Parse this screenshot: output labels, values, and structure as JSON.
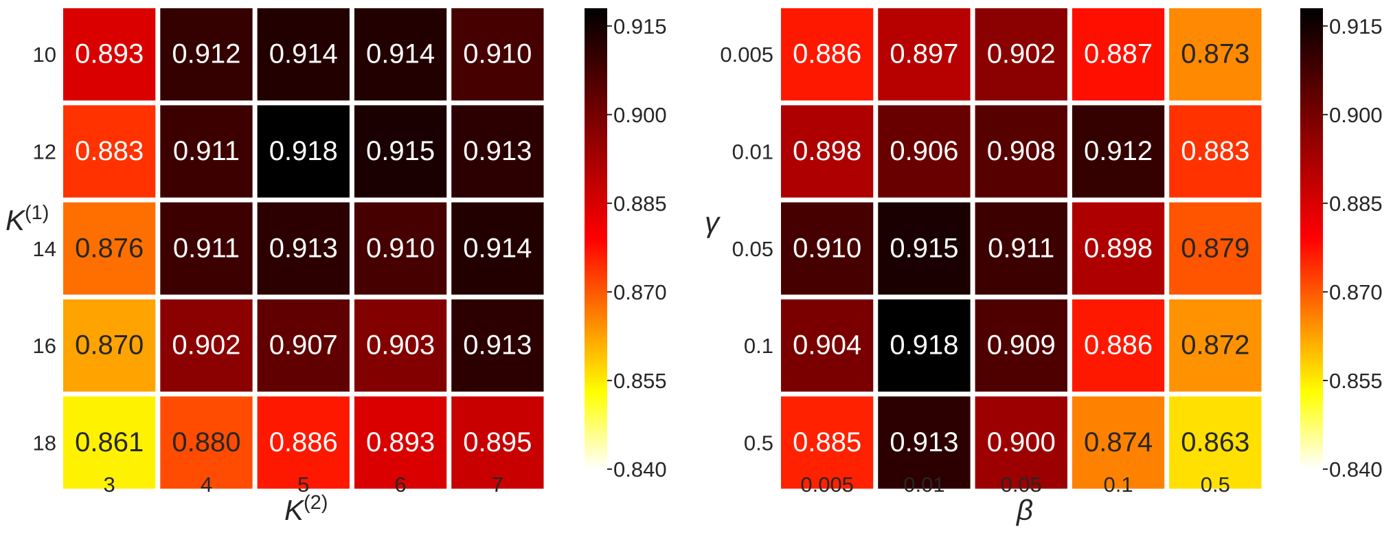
{
  "chart_data": [
    {
      "type": "heatmap",
      "title": "",
      "xlabel": "K(2)",
      "ylabel": "K(1)",
      "x_categories": [
        "3",
        "4",
        "5",
        "6",
        "7"
      ],
      "y_categories": [
        "10",
        "12",
        "14",
        "16",
        "18"
      ],
      "values": [
        [
          0.893,
          0.912,
          0.914,
          0.914,
          0.91
        ],
        [
          0.883,
          0.911,
          0.918,
          0.915,
          0.913
        ],
        [
          0.876,
          0.911,
          0.913,
          0.91,
          0.914
        ],
        [
          0.87,
          0.902,
          0.907,
          0.903,
          0.913
        ],
        [
          0.861,
          0.88,
          0.886,
          0.893,
          0.895
        ]
      ],
      "value_labels": [
        [
          "0.893",
          "0.912",
          "0.914",
          "0.914",
          "0.910"
        ],
        [
          "0.883",
          "0.911",
          "0.918",
          "0.915",
          "0.913"
        ],
        [
          "0.876",
          "0.911",
          "0.913",
          "0.910",
          "0.914"
        ],
        [
          "0.870",
          "0.902",
          "0.907",
          "0.903",
          "0.913"
        ],
        [
          "0.861",
          "0.880",
          "0.886",
          "0.893",
          "0.895"
        ]
      ],
      "colormap": "hot (reversed)",
      "vmin": 0.84,
      "vmax": 0.918,
      "colorbar_ticks": [
        "0.915",
        "0.900",
        "0.885",
        "0.870",
        "0.855",
        "0.840"
      ]
    },
    {
      "type": "heatmap",
      "title": "",
      "xlabel": "β",
      "ylabel": "γ",
      "x_categories": [
        "0.005",
        "0.01",
        "0.05",
        "0.1",
        "0.5"
      ],
      "y_categories": [
        "0.005",
        "0.01",
        "0.05",
        "0.1",
        "0.5"
      ],
      "values": [
        [
          0.886,
          0.897,
          0.902,
          0.887,
          0.873
        ],
        [
          0.898,
          0.906,
          0.908,
          0.912,
          0.883
        ],
        [
          0.91,
          0.915,
          0.911,
          0.898,
          0.879
        ],
        [
          0.904,
          0.918,
          0.909,
          0.886,
          0.872
        ],
        [
          0.885,
          0.913,
          0.9,
          0.874,
          0.863
        ]
      ],
      "value_labels": [
        [
          "0.886",
          "0.897",
          "0.902",
          "0.887",
          "0.873"
        ],
        [
          "0.898",
          "0.906",
          "0.908",
          "0.912",
          "0.883"
        ],
        [
          "0.910",
          "0.915",
          "0.911",
          "0.898",
          "0.879"
        ],
        [
          "0.904",
          "0.918",
          "0.909",
          "0.886",
          "0.872"
        ],
        [
          "0.885",
          "0.913",
          "0.900",
          "0.874",
          "0.863"
        ]
      ],
      "colormap": "hot (reversed)",
      "vmin": 0.84,
      "vmax": 0.918,
      "colorbar_ticks": [
        "0.915",
        "0.900",
        "0.885",
        "0.870",
        "0.855",
        "0.840"
      ]
    }
  ]
}
